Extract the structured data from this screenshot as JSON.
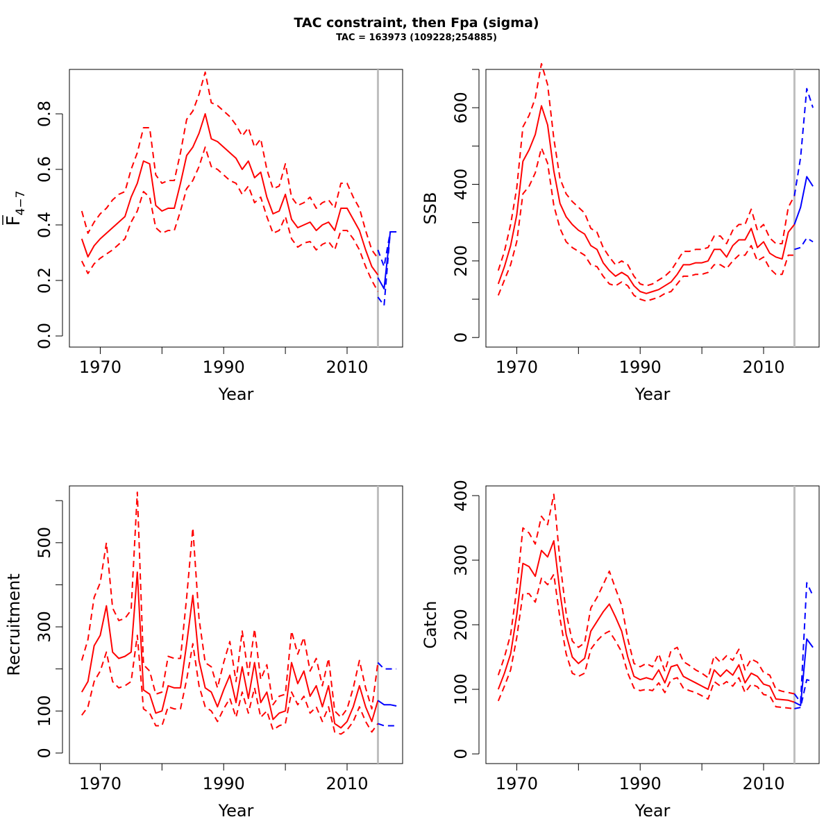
{
  "title": "TAC constraint, then Fpa (sigma)",
  "subtitle": "TAC = 163973 (109228;254885)",
  "colors": {
    "estimate": "#ff0000",
    "forecast": "#0000ff",
    "divider": "#bebebe",
    "axis": "#000000"
  },
  "chart_data": [
    {
      "type": "line",
      "id": "fbar",
      "xlabel": "Year",
      "ylabel_main": "F",
      "ylabel_sub": "4−7",
      "ylabel_overbar": true,
      "xlim": [
        1965,
        2019
      ],
      "ylim": [
        -0.04,
        0.96
      ],
      "xticks": [
        1970,
        1980,
        1990,
        2000,
        2010
      ],
      "xtick_labels": [
        "1970",
        "",
        "1990",
        "",
        "2010"
      ],
      "yticks": [
        0.0,
        0.2,
        0.4,
        0.6,
        0.8
      ],
      "ytick_labels": [
        "0.0",
        "0.2",
        "0.4",
        "0.6",
        "0.8"
      ],
      "divider_year": 2015,
      "hist_years": [
        1967,
        1968,
        1969,
        1970,
        1971,
        1972,
        1973,
        1974,
        1975,
        1976,
        1977,
        1978,
        1979,
        1980,
        1981,
        1982,
        1983,
        1984,
        1985,
        1986,
        1987,
        1988,
        1989,
        1990,
        1991,
        1992,
        1993,
        1994,
        1995,
        1996,
        1997,
        1998,
        1999,
        2000,
        2001,
        2002,
        2003,
        2004,
        2005,
        2006,
        2007,
        2008,
        2009,
        2010,
        2011,
        2012,
        2013,
        2014,
        2015
      ],
      "est": [
        0.35,
        0.285,
        0.325,
        0.35,
        0.37,
        0.39,
        0.41,
        0.43,
        0.5,
        0.55,
        0.63,
        0.62,
        0.47,
        0.45,
        0.46,
        0.46,
        0.55,
        0.65,
        0.68,
        0.73,
        0.8,
        0.71,
        0.7,
        0.68,
        0.66,
        0.64,
        0.6,
        0.63,
        0.57,
        0.59,
        0.5,
        0.44,
        0.45,
        0.51,
        0.42,
        0.39,
        0.4,
        0.41,
        0.38,
        0.4,
        0.41,
        0.38,
        0.46,
        0.46,
        0.42,
        0.38,
        0.31,
        0.25,
        0.22
      ],
      "lower": [
        0.27,
        0.225,
        0.26,
        0.28,
        0.295,
        0.31,
        0.33,
        0.35,
        0.41,
        0.45,
        0.52,
        0.5,
        0.39,
        0.37,
        0.38,
        0.38,
        0.45,
        0.53,
        0.56,
        0.61,
        0.68,
        0.61,
        0.6,
        0.58,
        0.56,
        0.55,
        0.51,
        0.54,
        0.48,
        0.5,
        0.43,
        0.37,
        0.38,
        0.43,
        0.35,
        0.32,
        0.335,
        0.34,
        0.31,
        0.33,
        0.34,
        0.31,
        0.38,
        0.38,
        0.35,
        0.31,
        0.25,
        0.2,
        0.16
      ],
      "upper": [
        0.45,
        0.37,
        0.41,
        0.44,
        0.46,
        0.49,
        0.51,
        0.52,
        0.6,
        0.66,
        0.75,
        0.75,
        0.58,
        0.55,
        0.56,
        0.56,
        0.66,
        0.78,
        0.81,
        0.87,
        0.95,
        0.84,
        0.83,
        0.81,
        0.79,
        0.76,
        0.72,
        0.75,
        0.68,
        0.71,
        0.6,
        0.53,
        0.54,
        0.62,
        0.5,
        0.47,
        0.48,
        0.5,
        0.46,
        0.48,
        0.49,
        0.46,
        0.55,
        0.55,
        0.5,
        0.46,
        0.38,
        0.31,
        0.28
      ],
      "fc_years": [
        2015,
        2016,
        2017,
        2018
      ],
      "fc_est": [
        0.21,
        0.17,
        0.375,
        0.375
      ],
      "fc_lower": [
        0.14,
        0.11,
        0.375,
        0.375
      ],
      "fc_upper": [
        0.31,
        0.25,
        0.375,
        0.375
      ]
    },
    {
      "type": "line",
      "id": "ssb",
      "xlabel": "Year",
      "ylabel_main": "SSB",
      "xlim": [
        1965,
        2019
      ],
      "ylim": [
        -25,
        700
      ],
      "xticks": [
        1970,
        1980,
        1990,
        2000,
        2010
      ],
      "xtick_labels": [
        "1970",
        "",
        "1990",
        "",
        "2010"
      ],
      "yticks": [
        0,
        100,
        200,
        300,
        400,
        500,
        600,
        700
      ],
      "ytick_labels": [
        "0",
        "",
        "200",
        "",
        "400",
        "",
        "600",
        ""
      ],
      "divider_year": 2015,
      "hist_years": [
        1967,
        1968,
        1969,
        1970,
        1971,
        1972,
        1973,
        1974,
        1975,
        1976,
        1977,
        1978,
        1979,
        1980,
        1981,
        1982,
        1983,
        1984,
        1985,
        1986,
        1987,
        1988,
        1989,
        1990,
        1991,
        1992,
        1993,
        1994,
        1995,
        1996,
        1997,
        1998,
        1999,
        2000,
        2001,
        2002,
        2003,
        2004,
        2005,
        2006,
        2007,
        2008,
        2009,
        2010,
        2011,
        2012,
        2013,
        2014,
        2015
      ],
      "est": [
        140,
        185,
        240,
        320,
        460,
        490,
        530,
        605,
        555,
        435,
        350,
        315,
        295,
        280,
        270,
        240,
        230,
        195,
        175,
        160,
        170,
        160,
        135,
        120,
        115,
        120,
        125,
        135,
        145,
        165,
        190,
        190,
        195,
        195,
        200,
        230,
        230,
        210,
        240,
        255,
        255,
        285,
        235,
        250,
        220,
        210,
        205,
        275,
        295
      ],
      "lower": [
        110,
        150,
        190,
        250,
        375,
        395,
        430,
        495,
        455,
        345,
        285,
        250,
        235,
        225,
        215,
        190,
        185,
        160,
        140,
        135,
        145,
        135,
        110,
        100,
        95,
        100,
        105,
        115,
        120,
        140,
        160,
        160,
        165,
        165,
        170,
        190,
        190,
        180,
        200,
        215,
        215,
        240,
        200,
        210,
        180,
        165,
        165,
        215,
        215
      ],
      "upper": [
        175,
        225,
        295,
        390,
        550,
        580,
        625,
        715,
        660,
        520,
        415,
        375,
        355,
        340,
        325,
        285,
        275,
        235,
        210,
        190,
        200,
        190,
        160,
        140,
        135,
        140,
        150,
        160,
        175,
        200,
        225,
        225,
        230,
        230,
        235,
        265,
        265,
        245,
        280,
        295,
        295,
        335,
        280,
        295,
        260,
        245,
        245,
        340,
        370
      ],
      "fc_years": [
        2015,
        2016,
        2017,
        2018
      ],
      "fc_est": [
        295,
        340,
        420,
        395
      ],
      "fc_lower": [
        230,
        235,
        260,
        250
      ],
      "fc_upper": [
        370,
        470,
        650,
        600
      ]
    },
    {
      "type": "line",
      "id": "recruitment",
      "xlabel": "Year",
      "ylabel_main": "Recruitment",
      "xlim": [
        1965,
        2019
      ],
      "ylim": [
        -25,
        635
      ],
      "xticks": [
        1970,
        1980,
        1990,
        2000,
        2010
      ],
      "xtick_labels": [
        "1970",
        "",
        "1990",
        "",
        "2010"
      ],
      "yticks": [
        0,
        100,
        200,
        300,
        400,
        500,
        600
      ],
      "ytick_labels": [
        "0",
        "100",
        "",
        "300",
        "",
        "500",
        ""
      ],
      "divider_year": 2015,
      "hist_years": [
        1967,
        1968,
        1969,
        1970,
        1971,
        1972,
        1973,
        1974,
        1975,
        1976,
        1977,
        1978,
        1979,
        1980,
        1981,
        1982,
        1983,
        1984,
        1985,
        1986,
        1987,
        1988,
        1989,
        1990,
        1991,
        1992,
        1993,
        1994,
        1995,
        1996,
        1997,
        1998,
        1999,
        2000,
        2001,
        2002,
        2003,
        2004,
        2005,
        2006,
        2007,
        2008,
        2009,
        2010,
        2011,
        2012,
        2013,
        2014,
        2015
      ],
      "est": [
        145,
        170,
        255,
        280,
        350,
        240,
        225,
        230,
        240,
        430,
        150,
        140,
        95,
        100,
        160,
        155,
        155,
        260,
        375,
        220,
        155,
        145,
        110,
        150,
        185,
        120,
        205,
        130,
        215,
        120,
        145,
        80,
        95,
        100,
        215,
        165,
        195,
        135,
        160,
        110,
        160,
        70,
        60,
        75,
        110,
        160,
        110,
        75,
        125
      ],
      "lower": [
        90,
        110,
        170,
        195,
        240,
        170,
        155,
        160,
        170,
        280,
        105,
        95,
        65,
        65,
        110,
        105,
        105,
        175,
        260,
        160,
        110,
        100,
        75,
        105,
        130,
        85,
        145,
        95,
        155,
        85,
        100,
        55,
        65,
        70,
        145,
        115,
        135,
        95,
        110,
        75,
        110,
        50,
        45,
        55,
        75,
        110,
        75,
        50,
        70
      ],
      "upper": [
        220,
        270,
        370,
        405,
        500,
        345,
        315,
        320,
        340,
        620,
        210,
        195,
        140,
        145,
        230,
        225,
        225,
        370,
        535,
        320,
        215,
        205,
        155,
        215,
        265,
        170,
        290,
        185,
        295,
        175,
        210,
        115,
        135,
        140,
        290,
        235,
        275,
        195,
        225,
        160,
        225,
        100,
        85,
        105,
        155,
        220,
        155,
        105,
        215
      ],
      "fc_years": [
        2015,
        2016,
        2017,
        2018
      ],
      "fc_est": [
        125,
        115,
        115,
        112
      ],
      "fc_lower": [
        70,
        65,
        65,
        65
      ],
      "fc_upper": [
        215,
        200,
        200,
        200
      ]
    },
    {
      "type": "line",
      "id": "catch",
      "xlabel": "Year",
      "ylabel_main": "Catch",
      "xlim": [
        1965,
        2019
      ],
      "ylim": [
        -15,
        415
      ],
      "xticks": [
        1970,
        1980,
        1990,
        2000,
        2010
      ],
      "xtick_labels": [
        "1970",
        "",
        "1990",
        "",
        "2010"
      ],
      "yticks": [
        0,
        100,
        200,
        300,
        400
      ],
      "ytick_labels": [
        "0",
        "100",
        "200",
        "300",
        "400"
      ],
      "divider_year": 2015,
      "hist_years": [
        1967,
        1968,
        1969,
        1970,
        1971,
        1972,
        1973,
        1974,
        1975,
        1976,
        1977,
        1978,
        1979,
        1980,
        1981,
        1982,
        1983,
        1984,
        1985,
        1986,
        1987,
        1988,
        1989,
        1990,
        1991,
        1992,
        1993,
        1994,
        1995,
        1996,
        1997,
        1998,
        1999,
        2000,
        2001,
        2002,
        2003,
        2004,
        2005,
        2006,
        2007,
        2008,
        2009,
        2010,
        2011,
        2012,
        2013,
        2014,
        2015
      ],
      "est": [
        100,
        125,
        155,
        215,
        295,
        290,
        275,
        315,
        305,
        330,
        250,
        185,
        150,
        140,
        148,
        190,
        205,
        220,
        232,
        212,
        190,
        150,
        120,
        115,
        118,
        115,
        130,
        110,
        135,
        138,
        120,
        115,
        110,
        105,
        100,
        130,
        120,
        130,
        122,
        138,
        110,
        125,
        120,
        108,
        105,
        85,
        84,
        83,
        80
      ],
      "lower": [
        82,
        105,
        130,
        180,
        248,
        248,
        235,
        272,
        262,
        278,
        210,
        155,
        125,
        120,
        125,
        162,
        175,
        185,
        190,
        175,
        158,
        125,
        102,
        98,
        100,
        98,
        110,
        95,
        115,
        118,
        102,
        98,
        95,
        90,
        85,
        112,
        105,
        112,
        105,
        118,
        95,
        108,
        104,
        92,
        90,
        73,
        72,
        71,
        70
      ],
      "upper": [
        122,
        150,
        185,
        255,
        350,
        342,
        325,
        368,
        355,
        402,
        298,
        218,
        175,
        165,
        172,
        226,
        242,
        262,
        283,
        256,
        230,
        178,
        140,
        135,
        140,
        135,
        155,
        128,
        160,
        165,
        143,
        137,
        130,
        125,
        118,
        152,
        142,
        152,
        145,
        162,
        130,
        147,
        142,
        126,
        122,
        100,
        97,
        95,
        93
      ],
      "fc_years": [
        2015,
        2016,
        2017,
        2018
      ],
      "fc_est": [
        80,
        75,
        178,
        165
      ],
      "fc_lower": [
        70,
        72,
        115,
        112
      ],
      "fc_upper": [
        93,
        80,
        265,
        245
      ]
    }
  ]
}
